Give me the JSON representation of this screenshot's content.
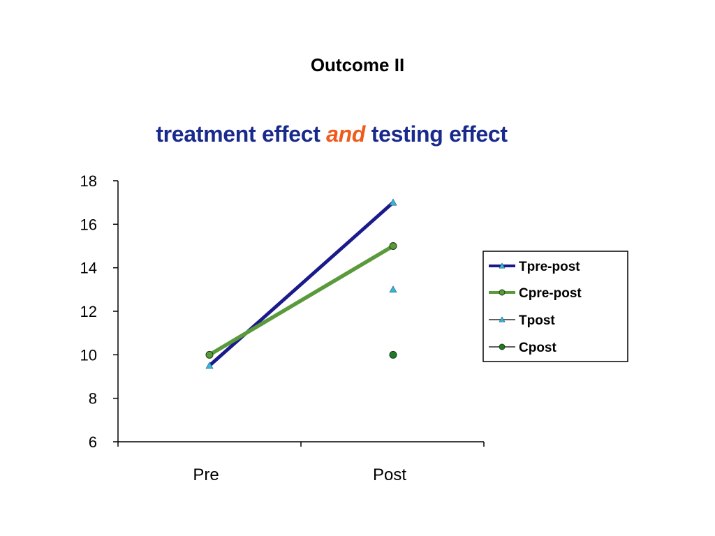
{
  "slide": {
    "title": "Outcome II"
  },
  "chart_data": {
    "type": "line",
    "title_parts": [
      "treatment effect ",
      "and",
      " testing effect"
    ],
    "categories": [
      "Pre",
      "Post"
    ],
    "ylim": [
      6,
      18
    ],
    "yticks": [
      6,
      8,
      10,
      12,
      14,
      16,
      18
    ],
    "legend_position": "right",
    "grid": false,
    "series": [
      {
        "name": "Tpre-post",
        "values": [
          9.5,
          17
        ],
        "kind": "line",
        "marker": "triangle",
        "color": "#1a1a8c"
      },
      {
        "name": "Cpre-post",
        "values": [
          10,
          15
        ],
        "kind": "line",
        "marker": "circle",
        "color": "#5b9a3c"
      },
      {
        "name": "Tpost",
        "values": [
          null,
          13
        ],
        "kind": "point",
        "marker": "triangle",
        "color": "#3ab4d8"
      },
      {
        "name": "Cpost",
        "values": [
          null,
          10
        ],
        "kind": "point",
        "marker": "circle",
        "color": "#1e7a28"
      }
    ],
    "colors": {
      "axis": "#000000",
      "title": "#1a2a8c",
      "title_highlight": "#f05a1a",
      "marker_tri": "#3ab4d8",
      "marker_circle": "#5b9a3c"
    }
  }
}
